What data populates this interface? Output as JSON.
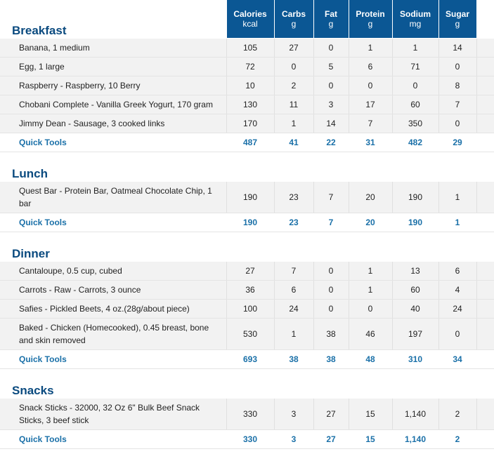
{
  "columns": [
    {
      "name": "Calories",
      "unit": "kcal"
    },
    {
      "name": "Carbs",
      "unit": "g"
    },
    {
      "name": "Fat",
      "unit": "g"
    },
    {
      "name": "Protein",
      "unit": "g"
    },
    {
      "name": "Sodium",
      "unit": "mg"
    },
    {
      "name": "Sugar",
      "unit": "g"
    }
  ],
  "meals": [
    {
      "title": "Breakfast",
      "totals_label": "Quick Tools",
      "foods": [
        {
          "name": "Banana, 1 medium",
          "values": [
            "105",
            "27",
            "0",
            "1",
            "1",
            "14"
          ]
        },
        {
          "name": "Egg, 1 large",
          "values": [
            "72",
            "0",
            "5",
            "6",
            "71",
            "0"
          ]
        },
        {
          "name": "Raspberry - Raspberry, 10 Berry",
          "values": [
            "10",
            "2",
            "0",
            "0",
            "0",
            "8"
          ]
        },
        {
          "name": "Chobani Complete - Vanilla Greek Yogurt, 170 gram",
          "values": [
            "130",
            "11",
            "3",
            "17",
            "60",
            "7"
          ]
        },
        {
          "name": "Jimmy Dean - Sausage, 3 cooked links",
          "values": [
            "170",
            "1",
            "14",
            "7",
            "350",
            "0"
          ]
        }
      ],
      "totals": [
        "487",
        "41",
        "22",
        "31",
        "482",
        "29"
      ]
    },
    {
      "title": "Lunch",
      "totals_label": "Quick Tools",
      "foods": [
        {
          "name": "Quest Bar - Protein Bar, Oatmeal Chocolate Chip, 1 bar",
          "values": [
            "190",
            "23",
            "7",
            "20",
            "190",
            "1"
          ]
        }
      ],
      "totals": [
        "190",
        "23",
        "7",
        "20",
        "190",
        "1"
      ]
    },
    {
      "title": "Dinner",
      "totals_label": "Quick Tools",
      "foods": [
        {
          "name": "Cantaloupe, 0.5 cup, cubed",
          "values": [
            "27",
            "7",
            "0",
            "1",
            "13",
            "6"
          ]
        },
        {
          "name": "Carrots - Raw - Carrots, 3 ounce",
          "values": [
            "36",
            "6",
            "0",
            "1",
            "60",
            "4"
          ]
        },
        {
          "name": "Safies - Pickled Beets, 4 oz.(28g/about piece)",
          "values": [
            "100",
            "24",
            "0",
            "0",
            "40",
            "24"
          ]
        },
        {
          "name": "Baked - Chicken (Homecooked), 0.45 breast, bone and skin removed",
          "values": [
            "530",
            "1",
            "38",
            "46",
            "197",
            "0"
          ]
        }
      ],
      "totals": [
        "693",
        "38",
        "38",
        "48",
        "310",
        "34"
      ]
    },
    {
      "title": "Snacks",
      "totals_label": "Quick Tools",
      "foods": [
        {
          "name": "Snack Sticks - 32000, 32 Oz 6\" Bulk Beef Snack Sticks, 3 beef stick",
          "values": [
            "330",
            "3",
            "27",
            "15",
            "1,140",
            "2"
          ]
        }
      ],
      "totals": [
        "330",
        "3",
        "27",
        "15",
        "1,140",
        "2"
      ]
    }
  ]
}
